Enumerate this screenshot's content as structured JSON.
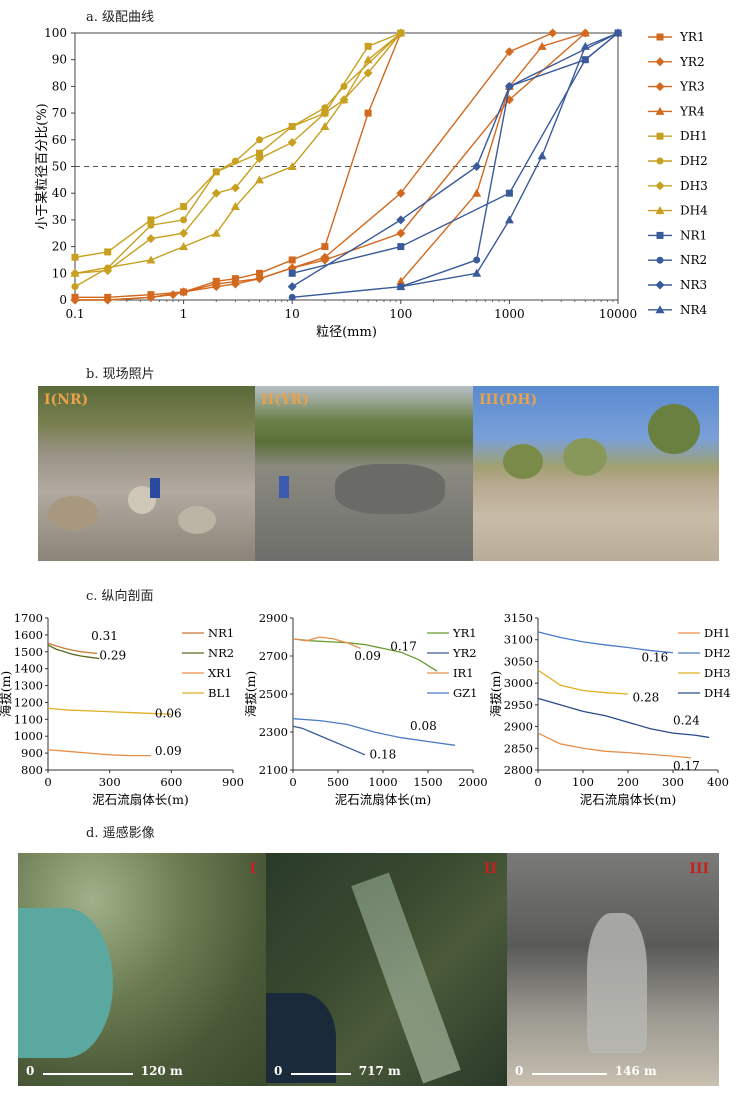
{
  "panels": {
    "a": "a. 级配曲线",
    "b": "b. 现场照片",
    "c": "c. 纵向剖面",
    "d": "d. 遥感影像"
  },
  "photos": [
    {
      "label": "I(NR)",
      "color": "#e8a24a"
    },
    {
      "label": "II(YR)",
      "color": "#e8a24a"
    },
    {
      "label": "III(DH)",
      "color": "#e8a24a"
    }
  ],
  "remote_sensing": [
    {
      "label": "I",
      "scale_start": "0",
      "scale_end": "120 m"
    },
    {
      "label": "II",
      "scale_start": "0",
      "scale_end": "717 m"
    },
    {
      "label": "III",
      "scale_start": "0",
      "scale_end": "146 m"
    }
  ],
  "chart_data": [
    {
      "type": "line",
      "xlabel": "粒径(mm)",
      "ylabel": "小于某粒径百分比(%)",
      "x_scale": "log",
      "xlim": [
        0.1,
        10000
      ],
      "ylim": [
        0,
        100
      ],
      "x_ticks": [
        "0.1",
        "1",
        "10",
        "100",
        "1000",
        "10000"
      ],
      "y_ticks": [
        "0",
        "10",
        "20",
        "30",
        "40",
        "50",
        "60",
        "70",
        "80",
        "90",
        "100"
      ],
      "reference_line_y": 50,
      "legend_position": "right",
      "series": [
        {
          "name": "YR1",
          "color": "#d2691e",
          "marker": "square",
          "x": [
            0.1,
            0.2,
            0.5,
            1,
            2,
            3,
            5,
            10,
            20,
            50,
            100
          ],
          "y": [
            1,
            1,
            2,
            3,
            7,
            8,
            10,
            15,
            20,
            70,
            100
          ]
        },
        {
          "name": "YR2",
          "color": "#d2691e",
          "marker": "diamond",
          "x": [
            0.1,
            0.2,
            0.5,
            1,
            2,
            5,
            10,
            20,
            100,
            1000,
            2500
          ],
          "y": [
            0,
            0,
            1,
            3,
            6,
            8,
            12,
            16,
            40,
            93,
            100
          ]
        },
        {
          "name": "YR3",
          "color": "#d2691e",
          "marker": "diamond",
          "x": [
            0.1,
            0.2,
            0.5,
            0.8,
            1,
            2,
            3,
            5,
            10,
            20,
            100,
            1000,
            5000
          ],
          "y": [
            0,
            0,
            1,
            2,
            3,
            5,
            6,
            8,
            12,
            15,
            25,
            75,
            100
          ]
        },
        {
          "name": "YR4",
          "color": "#d2691e",
          "marker": "triangle",
          "x": [
            100,
            500,
            1000,
            2000,
            5000
          ],
          "y": [
            7,
            40,
            80,
            95,
            100
          ]
        },
        {
          "name": "DH1",
          "color": "#c8a020",
          "marker": "square",
          "x": [
            0.1,
            0.2,
            0.5,
            1,
            2,
            5,
            10,
            20,
            50,
            100
          ],
          "y": [
            16,
            18,
            30,
            35,
            48,
            55,
            65,
            70,
            95,
            100
          ]
        },
        {
          "name": "DH2",
          "color": "#c8a020",
          "marker": "circle",
          "x": [
            0.1,
            0.2,
            0.5,
            1,
            2,
            3,
            5,
            10,
            20,
            30,
            100
          ],
          "y": [
            5,
            12,
            28,
            30,
            48,
            52,
            60,
            65,
            72,
            80,
            100
          ]
        },
        {
          "name": "DH3",
          "color": "#c8a020",
          "marker": "diamond",
          "x": [
            0.1,
            0.2,
            0.5,
            1,
            2,
            3,
            5,
            10,
            20,
            30,
            50,
            100
          ],
          "y": [
            10,
            11,
            23,
            25,
            40,
            42,
            53,
            59,
            70,
            75,
            85,
            100
          ]
        },
        {
          "name": "DH4",
          "color": "#c8a020",
          "marker": "triangle",
          "x": [
            0.1,
            0.5,
            1,
            2,
            3,
            5,
            10,
            20,
            30,
            50,
            100
          ],
          "y": [
            10,
            15,
            20,
            25,
            35,
            45,
            50,
            65,
            75,
            90,
            100
          ]
        },
        {
          "name": "NR1",
          "color": "#3a5a9a",
          "marker": "square",
          "x": [
            10,
            100,
            1000,
            5000,
            10000
          ],
          "y": [
            10,
            20,
            40,
            90,
            100
          ]
        },
        {
          "name": "NR2",
          "color": "#3a5a9a",
          "marker": "circle",
          "x": [
            10,
            100,
            500,
            1000,
            5000,
            10000
          ],
          "y": [
            1,
            5,
            15,
            80,
            90,
            100
          ]
        },
        {
          "name": "NR3",
          "color": "#3a5a9a",
          "marker": "diamond",
          "x": [
            10,
            100,
            500,
            1000,
            10000
          ],
          "y": [
            5,
            30,
            50,
            80,
            100
          ]
        },
        {
          "name": "NR4",
          "color": "#3a5a9a",
          "marker": "triangle",
          "x": [
            100,
            500,
            1000,
            2000,
            5000,
            10000
          ],
          "y": [
            5,
            10,
            30,
            54,
            95,
            100
          ]
        }
      ]
    },
    {
      "type": "line",
      "xlabel": "泥石流扇体长(m)",
      "ylabel": "海拔(m)",
      "xlim": [
        0,
        900
      ],
      "ylim": [
        800,
        1700
      ],
      "x_ticks": [
        "0",
        "300",
        "600",
        "900"
      ],
      "y_ticks": [
        "800",
        "900",
        "1000",
        "1100",
        "1200",
        "1300",
        "1400",
        "1500",
        "1600",
        "1700"
      ],
      "legend_position": "top-right",
      "series": [
        {
          "name": "NR1",
          "color": "#c87830",
          "x": [
            0,
            40,
            80,
            120,
            160,
            200,
            240
          ],
          "y": [
            1550,
            1535,
            1520,
            1510,
            1500,
            1495,
            1490
          ]
        },
        {
          "name": "NR2",
          "color": "#5a6a20",
          "x": [
            0,
            40,
            80,
            120,
            160,
            200,
            250
          ],
          "y": [
            1540,
            1515,
            1500,
            1485,
            1475,
            1468,
            1460
          ]
        },
        {
          "name": "XR1",
          "color": "#e8904a",
          "x": [
            0,
            100,
            200,
            300,
            400,
            500
          ],
          "y": [
            920,
            910,
            900,
            890,
            885,
            885
          ]
        },
        {
          "name": "BL1",
          "color": "#e0b020",
          "x": [
            0,
            100,
            200,
            300,
            400,
            500,
            600
          ],
          "y": [
            1165,
            1155,
            1150,
            1145,
            1140,
            1135,
            1130
          ]
        }
      ],
      "annotations": [
        {
          "text": "0.31",
          "x": 210,
          "y": 1570
        },
        {
          "text": "0.29",
          "x": 250,
          "y": 1455
        },
        {
          "text": "0.06",
          "x": 520,
          "y": 1110
        },
        {
          "text": "0.09",
          "x": 520,
          "y": 890
        }
      ]
    },
    {
      "type": "line",
      "xlabel": "泥石流扇体长(m)",
      "ylabel": "海拔(m)",
      "xlim": [
        0,
        2000
      ],
      "ylim": [
        2100,
        2900
      ],
      "x_ticks": [
        "0",
        "500",
        "1000",
        "1500",
        "2000"
      ],
      "y_ticks": [
        "2100",
        "2300",
        "2500",
        "2700",
        "2900"
      ],
      "legend_position": "top-right",
      "series": [
        {
          "name": "YR1",
          "color": "#6a9a30",
          "x": [
            0,
            200,
            400,
            600,
            800,
            1000,
            1200,
            1400,
            1600
          ],
          "y": [
            2790,
            2780,
            2775,
            2770,
            2760,
            2740,
            2720,
            2680,
            2620
          ]
        },
        {
          "name": "YR2",
          "color": "#3a5a9a",
          "x": [
            0,
            100,
            200,
            400,
            600,
            800
          ],
          "y": [
            2330,
            2320,
            2300,
            2260,
            2220,
            2180
          ]
        },
        {
          "name": "IR1",
          "color": "#e8904a",
          "x": [
            0,
            150,
            300,
            450,
            600,
            750
          ],
          "y": [
            2790,
            2780,
            2800,
            2790,
            2770,
            2740
          ]
        },
        {
          "name": "GZ1",
          "color": "#4a7ac8",
          "x": [
            0,
            300,
            600,
            900,
            1200,
            1500,
            1800
          ],
          "y": [
            2370,
            2360,
            2340,
            2300,
            2270,
            2250,
            2230
          ]
        }
      ],
      "annotations": [
        {
          "text": "0.17",
          "x": 1080,
          "y": 2730
        },
        {
          "text": "0.09",
          "x": 680,
          "y": 2680
        },
        {
          "text": "0.08",
          "x": 1300,
          "y": 2310
        },
        {
          "text": "0.18",
          "x": 850,
          "y": 2160
        }
      ]
    },
    {
      "type": "line",
      "xlabel": "泥石流扇体长(m)",
      "ylabel": "海拔(m)",
      "xlim": [
        0,
        400
      ],
      "ylim": [
        2800,
        3150
      ],
      "x_ticks": [
        "0",
        "100",
        "200",
        "300",
        "400"
      ],
      "y_ticks": [
        "2800",
        "2850",
        "2900",
        "2950",
        "3000",
        "3050",
        "3100",
        "3150"
      ],
      "legend_position": "top-right",
      "series": [
        {
          "name": "DH1",
          "color": "#e8904a",
          "x": [
            0,
            50,
            100,
            150,
            200,
            250,
            300,
            340
          ],
          "y": [
            2885,
            2860,
            2850,
            2843,
            2840,
            2836,
            2832,
            2828
          ]
        },
        {
          "name": "DH2",
          "color": "#4a7ac8",
          "x": [
            0,
            50,
            100,
            150,
            200,
            250,
            300
          ],
          "y": [
            3118,
            3105,
            3095,
            3088,
            3082,
            3075,
            3070
          ]
        },
        {
          "name": "DH3",
          "color": "#e0b020",
          "x": [
            0,
            50,
            100,
            150,
            200
          ],
          "y": [
            3030,
            2995,
            2983,
            2978,
            2975
          ]
        },
        {
          "name": "DH4",
          "color": "#2a4a8a",
          "x": [
            0,
            50,
            100,
            150,
            200,
            250,
            300,
            350,
            380
          ],
          "y": [
            2965,
            2950,
            2935,
            2925,
            2910,
            2895,
            2885,
            2880,
            2875
          ]
        }
      ],
      "annotations": [
        {
          "text": "0.16",
          "x": 230,
          "y": 3050
        },
        {
          "text": "0.28",
          "x": 210,
          "y": 2958
        },
        {
          "text": "0.24",
          "x": 300,
          "y": 2905
        },
        {
          "text": "0.17",
          "x": 300,
          "y": 2800
        }
      ]
    }
  ]
}
